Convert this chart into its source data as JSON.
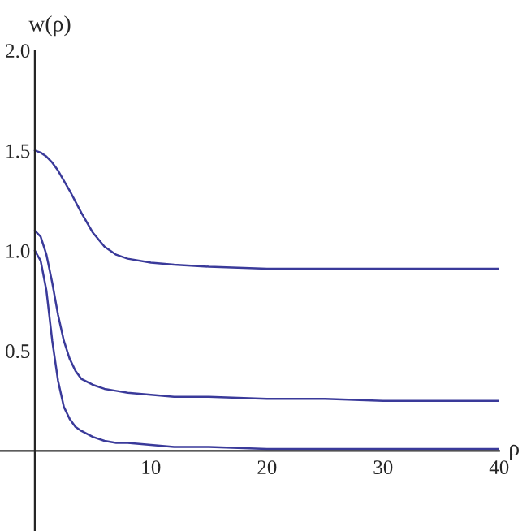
{
  "chart_data": {
    "type": "line",
    "xlabel": "ρ",
    "ylabel": "w(ρ)",
    "xlim": [
      -3,
      40
    ],
    "ylim": [
      -0.4,
      2.0
    ],
    "xticks": [
      10,
      20,
      30,
      40
    ],
    "yticks": [
      0.5,
      {
        "value": 1.0,
        "label": "1.0"
      },
      1.5,
      {
        "value": 2.0,
        "label": "2.0"
      }
    ],
    "grid": false,
    "marker": "none",
    "line_style": "solid",
    "series": [
      {
        "color": "#3a3a9a",
        "x": [
          0,
          0.5,
          1,
          1.5,
          2,
          3,
          4,
          5,
          6,
          7,
          8,
          10,
          12,
          15,
          20,
          25,
          30,
          35,
          40
        ],
        "values": [
          1.5,
          1.49,
          1.47,
          1.44,
          1.4,
          1.3,
          1.19,
          1.09,
          1.02,
          0.98,
          0.96,
          0.94,
          0.93,
          0.92,
          0.91,
          0.91,
          0.91,
          0.91,
          0.91
        ]
      },
      {
        "color": "#3a3a9a",
        "x": [
          0,
          0.5,
          1,
          1.5,
          2,
          2.5,
          3,
          3.5,
          4,
          5,
          6,
          7,
          8,
          10,
          12,
          15,
          20,
          25,
          30,
          35,
          40
        ],
        "values": [
          1.1,
          1.07,
          0.98,
          0.84,
          0.68,
          0.55,
          0.46,
          0.4,
          0.36,
          0.33,
          0.31,
          0.3,
          0.29,
          0.28,
          0.27,
          0.27,
          0.26,
          0.26,
          0.25,
          0.25,
          0.25
        ]
      },
      {
        "color": "#3a3a9a",
        "x": [
          0,
          0.5,
          1,
          1.5,
          2,
          2.5,
          3,
          3.5,
          4,
          5,
          6,
          7,
          8,
          10,
          12,
          15,
          20,
          25,
          30,
          35,
          40
        ],
        "values": [
          1.0,
          0.95,
          0.8,
          0.55,
          0.35,
          0.22,
          0.16,
          0.12,
          0.1,
          0.07,
          0.05,
          0.04,
          0.04,
          0.03,
          0.02,
          0.02,
          0.01,
          0.01,
          0.01,
          0.01,
          0.01
        ]
      }
    ]
  }
}
